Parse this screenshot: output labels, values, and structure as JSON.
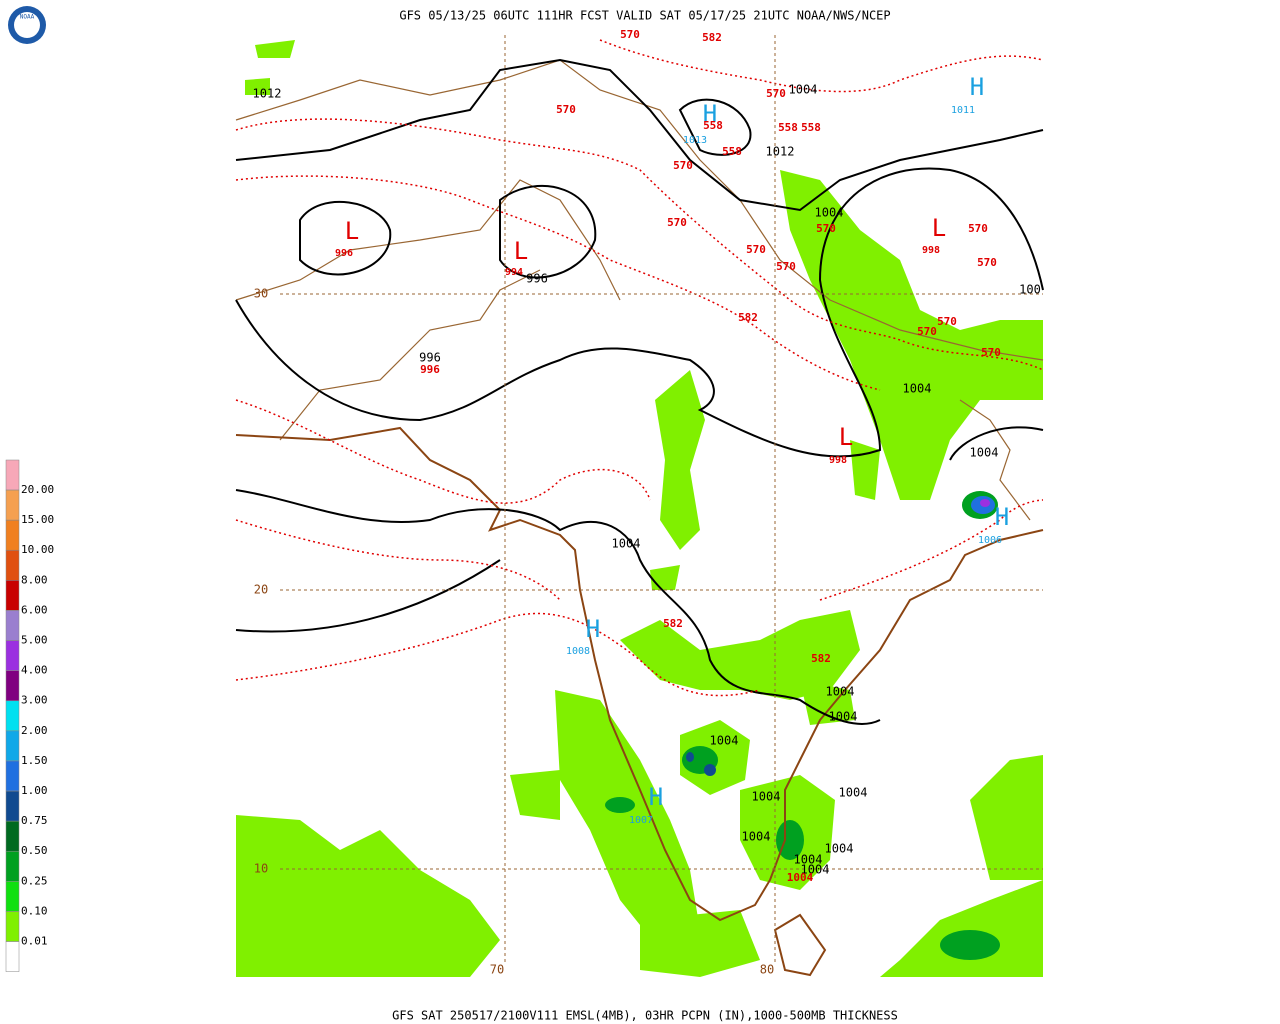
{
  "header": {
    "title": "GFS 05/13/25 06UTC 111HR FCST VALID SAT 05/17/25 21UTC NOAA/NWS/NCEP"
  },
  "footer": {
    "caption": "GFS SAT 250517/2100V111 EMSL(4MB), 03HR PCPN (IN),1000-500MB THICKNESS"
  },
  "logo": {
    "text": "NOAA"
  },
  "legend": {
    "items": [
      {
        "label": "20.00",
        "color": "#f7a8b8"
      },
      {
        "label": "15.00",
        "color": "#f5a050"
      },
      {
        "label": "10.00",
        "color": "#f08020"
      },
      {
        "label": "8.00",
        "color": "#e05010"
      },
      {
        "label": "6.00",
        "color": "#c80000"
      },
      {
        "label": "5.00",
        "color": "#9a7fcf"
      },
      {
        "label": "4.00",
        "color": "#9b30e0"
      },
      {
        "label": "3.00",
        "color": "#800080"
      },
      {
        "label": "2.00",
        "color": "#00e0f0"
      },
      {
        "label": "1.50",
        "color": "#10a8e8"
      },
      {
        "label": "1.00",
        "color": "#2070e0"
      },
      {
        "label": "0.75",
        "color": "#104a90"
      },
      {
        "label": "0.50",
        "color": "#006a20"
      },
      {
        "label": "0.25",
        "color": "#00a020"
      },
      {
        "label": "0.10",
        "color": "#10e010"
      },
      {
        "label": "0.01",
        "color": "#80f000"
      }
    ]
  },
  "grid_labels": [
    "30",
    "20",
    "10",
    "70",
    "80"
  ],
  "highs": [
    {
      "symbol": "H",
      "pressure": "1011"
    },
    {
      "symbol": "H",
      "pressure": "1013"
    },
    {
      "symbol": "H",
      "pressure": "1006"
    },
    {
      "symbol": "H",
      "pressure": "1008"
    },
    {
      "symbol": "H",
      "pressure": "1007"
    }
  ],
  "lows": [
    {
      "symbol": "L",
      "pressure": "996"
    },
    {
      "symbol": "L",
      "pressure": "994"
    },
    {
      "symbol": "L",
      "pressure": "998"
    },
    {
      "symbol": "L",
      "pressure": "998"
    }
  ],
  "isobar_labels": [
    "1012",
    "1004",
    "1012",
    "1004",
    "996",
    "100",
    "996",
    "1004",
    "1004",
    "1004",
    "1004",
    "1004",
    "1004",
    "1004",
    "1004",
    "1004",
    "1004",
    "1004",
    "1004"
  ],
  "thickness_labels": [
    "570",
    "582",
    "570",
    "558",
    "570",
    "558",
    "558",
    "558",
    "570",
    "570",
    "570",
    "570",
    "570",
    "570",
    "570",
    "996",
    "570",
    "570",
    "570",
    "582",
    "582",
    "582",
    "1004"
  ]
}
